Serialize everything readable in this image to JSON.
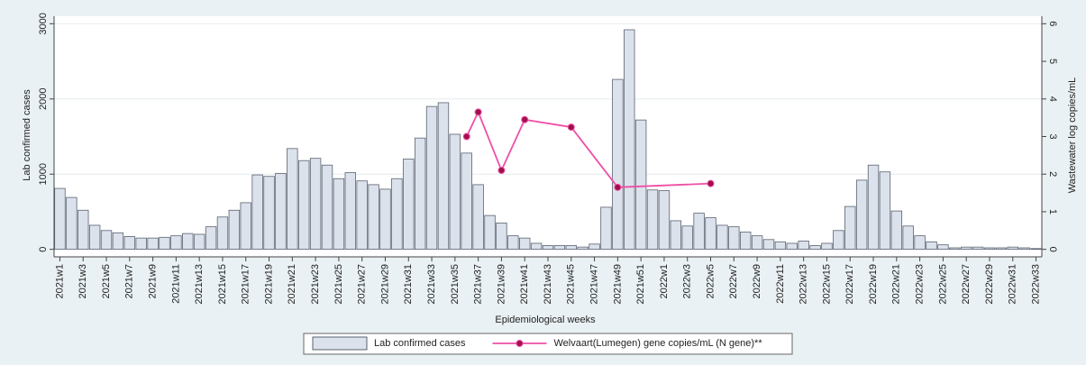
{
  "chart_data": {
    "type": "bar",
    "x_label": "Epidemiological weeks",
    "y_label": "Lab confirmed cases",
    "y2_label": "Wastewater log copies/mL",
    "categories": [
      "2021w1",
      null,
      "2021w3",
      null,
      "2021w5",
      null,
      "2021w7",
      null,
      "2021w9",
      null,
      "2021w11",
      null,
      "2021w13",
      null,
      "2021w15",
      null,
      "2021w17",
      null,
      "2021w19",
      null,
      "2021w21",
      null,
      "2021w23",
      null,
      "2021w25",
      null,
      "2021w27",
      null,
      "2021w29",
      null,
      "2021w31",
      null,
      "2021w33",
      null,
      "2021w35",
      null,
      "2021w37",
      null,
      "2021w39",
      null,
      "2021w41",
      null,
      "2021w43",
      null,
      "2021w45",
      null,
      "2021w47",
      null,
      "2021w49",
      null,
      "2021w51",
      null,
      "2022w1",
      null,
      "2022w3",
      null,
      "2022w5",
      null,
      "2022w7",
      null,
      "2022w9",
      null,
      "2022w11",
      null,
      "2022w13",
      null,
      "2022w15",
      null,
      "2022w17",
      null,
      "2022w19",
      null,
      "2022w21",
      null,
      "2022w23",
      null,
      "2022w25",
      null,
      "2022w27",
      null,
      "2022w29",
      null,
      "2022w31",
      null,
      "2022w33"
    ],
    "series": [
      {
        "name": "Lab confirmed cases",
        "type": "bar",
        "color": "#dbe2ec",
        "values": [
          810,
          690,
          520,
          320,
          250,
          220,
          170,
          150,
          150,
          160,
          180,
          210,
          200,
          300,
          430,
          520,
          620,
          990,
          970,
          1010,
          1340,
          1180,
          1210,
          1120,
          940,
          1020,
          910,
          860,
          800,
          940,
          1200,
          1480,
          1900,
          1950,
          1530,
          1280,
          860,
          450,
          350,
          180,
          150,
          80,
          50,
          50,
          50,
          30,
          70,
          560,
          2260,
          2920,
          1720,
          790,
          780,
          380,
          310,
          480,
          420,
          320,
          300,
          230,
          180,
          130,
          100,
          80,
          110,
          50,
          80,
          250,
          570,
          920,
          1120,
          1030,
          510,
          310,
          180,
          100,
          60,
          20,
          30,
          30,
          20,
          20,
          30,
          20,
          10
        ]
      },
      {
        "name": "Welvaart(Lumegen) gene copies/mL (N gene)**",
        "type": "line",
        "axis": "y2",
        "color": "#ee4fa6",
        "marker_color": "#a0104a",
        "values": [
          null,
          null,
          null,
          null,
          null,
          null,
          null,
          null,
          null,
          null,
          null,
          null,
          null,
          null,
          null,
          null,
          null,
          null,
          null,
          null,
          null,
          null,
          null,
          null,
          null,
          null,
          null,
          null,
          null,
          null,
          null,
          null,
          null,
          null,
          null,
          3.0,
          3.65,
          null,
          2.1,
          null,
          3.45,
          null,
          null,
          null,
          3.25,
          null,
          null,
          null,
          1.65,
          null,
          null,
          null,
          null,
          null,
          null,
          null,
          1.75,
          null,
          null,
          null,
          null,
          null,
          null,
          null,
          null,
          null,
          null,
          null,
          null,
          null,
          null,
          null,
          null,
          null,
          null,
          null,
          null,
          null,
          null,
          null,
          null,
          null,
          null,
          null,
          null
        ]
      }
    ],
    "ylim": [
      -100,
      3100
    ],
    "yticks": [
      0,
      1000,
      2000,
      3000
    ],
    "y2lim": [
      -0.2,
      6.2
    ],
    "y2ticks": [
      0,
      1,
      2,
      3,
      4,
      5,
      6
    ],
    "grid": true,
    "legend": "bottom"
  }
}
